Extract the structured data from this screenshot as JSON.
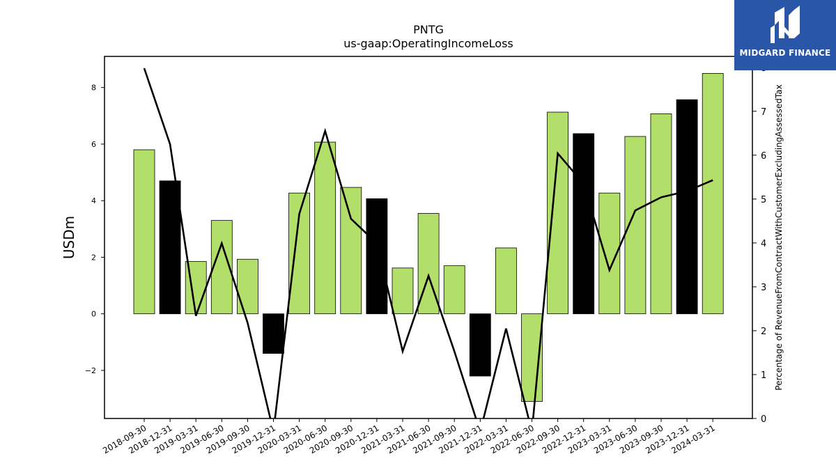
{
  "chart_data": {
    "type": "bar",
    "title": "PNTG",
    "subtitle": "us-gaap:OperatingIncomeLoss",
    "ylabel": "USDm",
    "y2label": "Percentage of RevenueFromContractWithCustomerExcludingAssessedTax",
    "ylim": [
      -3.7,
      9.1
    ],
    "y2lim": [
      0,
      8.25
    ],
    "yticks": [
      -2,
      0,
      2,
      4,
      6,
      8
    ],
    "y2ticks": [
      0,
      1,
      2,
      3,
      4,
      5,
      6,
      7,
      8
    ],
    "categories": [
      "2018-09-30",
      "2018-12-31",
      "2019-03-31",
      "2019-06-30",
      "2019-09-30",
      "2019-12-31",
      "2020-03-31",
      "2020-06-30",
      "2020-09-30",
      "2020-12-31",
      "2021-03-31",
      "2021-06-30",
      "2021-09-30",
      "2021-12-31",
      "2022-03-31",
      "2022-06-30",
      "2022-09-30",
      "2022-12-31",
      "2023-03-31",
      "2023-06-30",
      "2023-09-30",
      "2023-12-31",
      "2024-03-31"
    ],
    "series": [
      {
        "kind": "bar",
        "values": [
          5.8,
          4.7,
          1.85,
          3.3,
          1.93,
          -1.4,
          4.27,
          6.07,
          4.47,
          4.07,
          1.62,
          3.55,
          1.7,
          -2.2,
          2.33,
          -3.1,
          7.13,
          6.37,
          4.27,
          6.27,
          7.07,
          7.57,
          8.5
        ],
        "colors": [
          "#b2df6a",
          "#000000",
          "#b2df6a",
          "#b2df6a",
          "#b2df6a",
          "#000000",
          "#b2df6a",
          "#b2df6a",
          "#b2df6a",
          "#000000",
          "#b2df6a",
          "#b2df6a",
          "#b2df6a",
          "#000000",
          "#b2df6a",
          "#b2df6a",
          "#b2df6a",
          "#000000",
          "#b2df6a",
          "#b2df6a",
          "#b2df6a",
          "#000000",
          "#b2df6a"
        ]
      },
      {
        "kind": "line",
        "axis": "right",
        "color": "#000000",
        "values": [
          7.98,
          6.25,
          2.34,
          3.99,
          2.18,
          -0.3,
          4.66,
          6.55,
          4.55,
          3.99,
          1.53,
          3.25,
          1.53,
          -0.3,
          2.05,
          -0.3,
          6.04,
          5.35,
          3.38,
          4.74,
          5.04,
          5.18,
          5.43
        ]
      }
    ],
    "grid": false,
    "legend": "none"
  },
  "logo": {
    "text": "MIDGARD FINANCE",
    "bg": "#2a56a8"
  }
}
